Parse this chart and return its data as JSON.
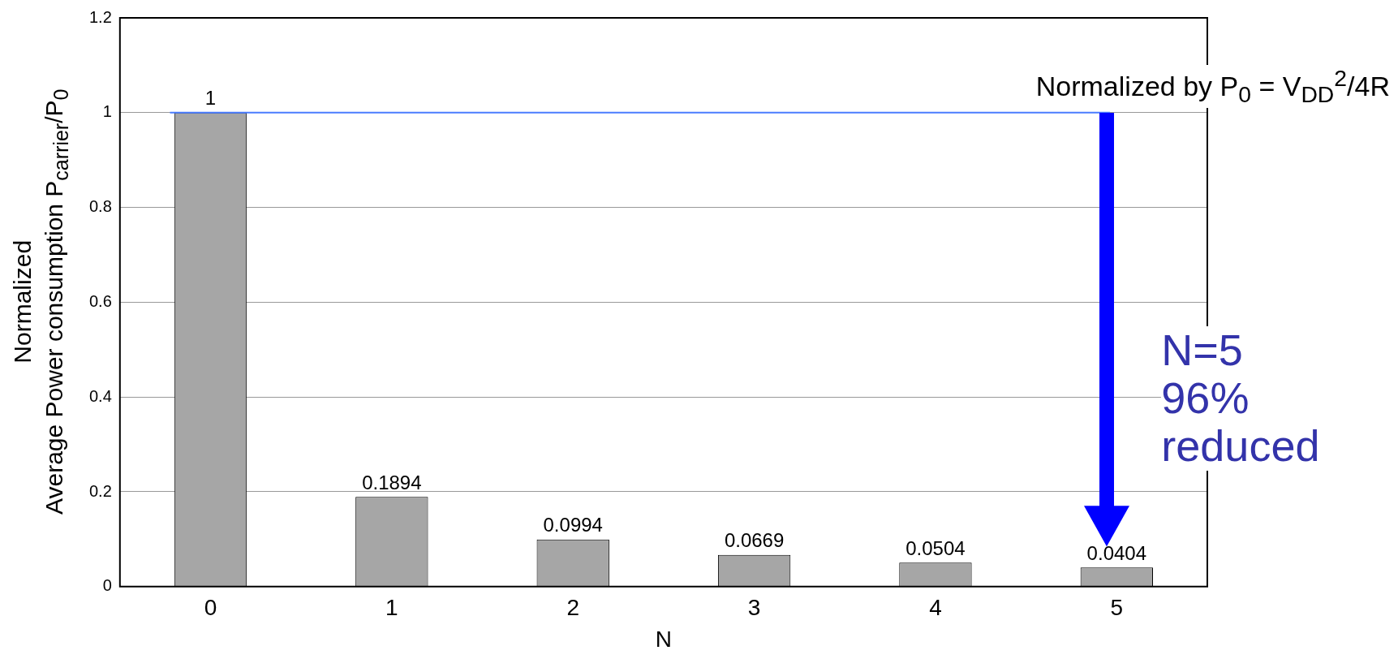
{
  "chart_data": {
    "type": "bar",
    "xlabel": "N",
    "ylabel": "Normalized\nAverage Power consumption P$_{carrier}$/P$_{0}$",
    "categories": [
      "0",
      "1",
      "2",
      "3",
      "4",
      "5"
    ],
    "values": [
      1,
      0.1894,
      0.0994,
      0.0669,
      0.0504,
      0.0404
    ],
    "color": "#a6a6a6",
    "ylim": [
      0,
      1.2
    ],
    "yticks": [
      0,
      0.2,
      0.4,
      0.6,
      0.8,
      1,
      1.2
    ],
    "grid": "y",
    "data_labels": true,
    "legend": false,
    "ref_lines": [
      {
        "axis": "y",
        "value": 1,
        "color": "#4a7cff"
      }
    ],
    "annotations": [
      "Normalized by P$_{0}$ = V$_{DD}$$^{2}$/4R",
      "N=5\n96%\nreduced"
    ]
  }
}
